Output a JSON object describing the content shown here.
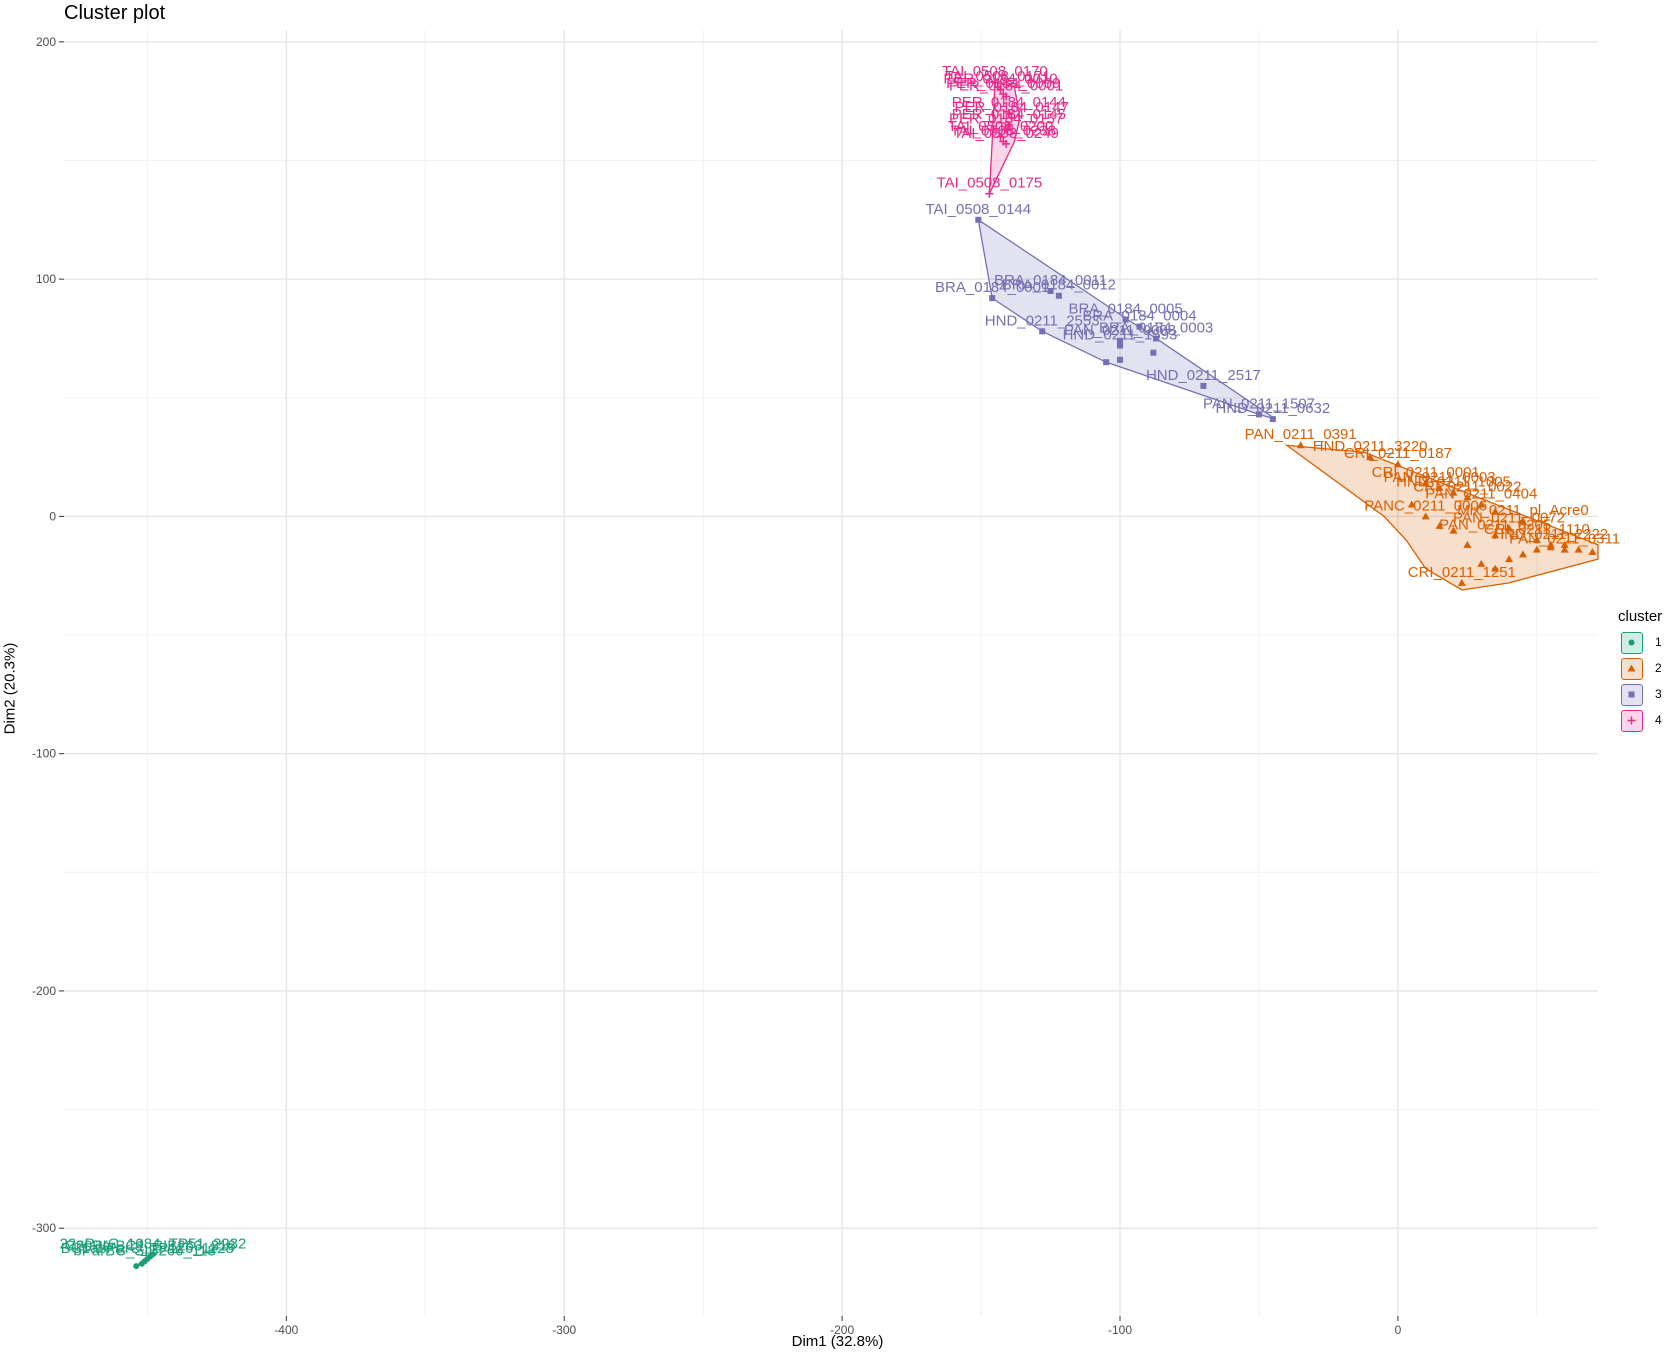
{
  "chart_data": {
    "type": "scatter",
    "title": "Cluster plot",
    "xlabel": "Dim1 (32.8%)",
    "ylabel": "Dim2 (20.3%)",
    "xlim": [
      -480,
      72
    ],
    "ylim": [
      -337,
      205
    ],
    "xticks": [
      -400,
      -300,
      -200,
      -100,
      0
    ],
    "yticks": [
      200,
      100,
      0,
      -100,
      -200,
      -300
    ],
    "grid": true,
    "legend": {
      "title": "cluster",
      "position": "right",
      "entries": [
        "1",
        "2",
        "3",
        "4"
      ]
    },
    "colors": {
      "1": "#1B9E77",
      "2": "#D95F02",
      "3": "#7570B3",
      "4": "#E7298A"
    },
    "series": [
      {
        "cluster": "1",
        "shape": "circle",
        "points": [
          {
            "label": "22aParC_1084_TP51_2232",
            "x": -448,
            "y": -311
          },
          {
            "label": "C20ParBC1_SIB263_316",
            "x": -449,
            "y": -312
          },
          {
            "label": "BC1abParC_TP126_1128",
            "x": -450,
            "y": -313
          },
          {
            "label": "bParBC_SIB266_118",
            "x": -451,
            "y": -314
          },
          {
            "label": "",
            "x": -452,
            "y": -315
          },
          {
            "label": "",
            "x": -454,
            "y": -316
          }
        ],
        "hull": [
          [
            -446,
            -310
          ],
          [
            -454,
            -316
          ],
          [
            -452,
            -314
          ],
          [
            -448,
            -311
          ]
        ]
      },
      {
        "cluster": "2",
        "shape": "triangle",
        "points": [
          {
            "label": "PAN_0211_0391",
            "x": -35,
            "y": 30
          },
          {
            "label": "HND_0211_3220",
            "x": -10,
            "y": 25
          },
          {
            "label": "CRI_0211_0187",
            "x": 0,
            "y": 22
          },
          {
            "label": "CRI_0211_0001",
            "x": 10,
            "y": 14
          },
          {
            "label": "PAN_0211_0003",
            "x": 15,
            "y": 12
          },
          {
            "label": "HND_0211_1005",
            "x": 20,
            "y": 10
          },
          {
            "label": "CRI_0211_0022",
            "x": 25,
            "y": 8
          },
          {
            "label": "PAN_0211_0404",
            "x": 30,
            "y": 5
          },
          {
            "label": "PANC_0211_0006",
            "x": 10,
            "y": 0
          },
          {
            "label": "Mix_0211_pl_Acre0",
            "x": 45,
            "y": -2
          },
          {
            "label": "PAN_0211_0072",
            "x": 40,
            "y": -5
          },
          {
            "label": "PAN_0211_0205",
            "x": 35,
            "y": -8
          },
          {
            "label": "CRI_0211_1110",
            "x": 50,
            "y": -10
          },
          {
            "label": "HND_0211_2222",
            "x": 55,
            "y": -12
          },
          {
            "label": "PAN_0211_0311",
            "x": 60,
            "y": -14
          },
          {
            "label": "CRI_0211_1251",
            "x": 23,
            "y": -28
          },
          {
            "label": "",
            "x": 30,
            "y": -20
          },
          {
            "label": "",
            "x": 35,
            "y": -22
          },
          {
            "label": "",
            "x": 40,
            "y": -18
          },
          {
            "label": "",
            "x": 45,
            "y": -16
          },
          {
            "label": "",
            "x": 50,
            "y": -14
          },
          {
            "label": "",
            "x": 55,
            "y": -13
          },
          {
            "label": "",
            "x": 60,
            "y": -12
          },
          {
            "label": "",
            "x": 65,
            "y": -14
          },
          {
            "label": "",
            "x": 70,
            "y": -15
          },
          {
            "label": "",
            "x": 25,
            "y": -12
          },
          {
            "label": "",
            "x": 20,
            "y": -6
          },
          {
            "label": "",
            "x": 15,
            "y": -4
          },
          {
            "label": "",
            "x": 5,
            "y": 5
          },
          {
            "label": "",
            "x": 35,
            "y": 2
          }
        ],
        "hull": [
          [
            -40,
            30
          ],
          [
            -12,
            27
          ],
          [
            72,
            -12
          ],
          [
            72,
            -18
          ],
          [
            40,
            -28
          ],
          [
            23,
            -31
          ],
          [
            10,
            -22
          ],
          [
            3,
            -10
          ],
          [
            -5,
            0
          ]
        ]
      },
      {
        "cluster": "3",
        "shape": "square",
        "points": [
          {
            "label": "TAI_0508_0144",
            "x": -151,
            "y": 125
          },
          {
            "label": "BRA_0184_0011",
            "x": -125,
            "y": 95
          },
          {
            "label": "BRA_0184_0012",
            "x": -122,
            "y": 93
          },
          {
            "label": "BRA_0184_0001",
            "x": -146,
            "y": 92
          },
          {
            "label": "BRA_0184_0005",
            "x": -98,
            "y": 83
          },
          {
            "label": "BRA_0184_0004",
            "x": -93,
            "y": 80
          },
          {
            "label": "HND_0211_2553",
            "x": -128,
            "y": 78
          },
          {
            "label": "BRA_0184_0003",
            "x": -87,
            "y": 75
          },
          {
            "label": "PAN_0211_0008",
            "x": -100,
            "y": 74
          },
          {
            "label": "HND_0211_1593",
            "x": -100,
            "y": 72
          },
          {
            "label": "",
            "x": -88,
            "y": 69
          },
          {
            "label": "",
            "x": -100,
            "y": 66
          },
          {
            "label": "",
            "x": -105,
            "y": 65
          },
          {
            "label": "HND_0211_2517",
            "x": -70,
            "y": 55
          },
          {
            "label": "PAN_0211_1507",
            "x": -50,
            "y": 43
          },
          {
            "label": "HND_0211_0632",
            "x": -45,
            "y": 41
          }
        ],
        "hull": [
          [
            -151,
            125
          ],
          [
            -87,
            75
          ],
          [
            -44,
            41
          ],
          [
            -50,
            43
          ],
          [
            -105,
            65
          ],
          [
            -128,
            78
          ],
          [
            -146,
            92
          ]
        ]
      },
      {
        "cluster": "4",
        "shape": "cross",
        "points": [
          {
            "label": "TAI_0508_0170",
            "x": -145,
            "y": 183
          },
          {
            "label": "TAI_0508_0171",
            "x": -144,
            "y": 181
          },
          {
            "label": "PER_0184_0010",
            "x": -143,
            "y": 180
          },
          {
            "label": "PER_0184_0009",
            "x": -142,
            "y": 178
          },
          {
            "label": "PER_0184_0001",
            "x": -141,
            "y": 177
          },
          {
            "label": "PER_0184_0144",
            "x": -140,
            "y": 170
          },
          {
            "label": "PER_0184_0147",
            "x": -139,
            "y": 168
          },
          {
            "label": "PER_0184_0145",
            "x": -140,
            "y": 165
          },
          {
            "label": "PER_0184_0157",
            "x": -141,
            "y": 163
          },
          {
            "label": "TAI_0508_0200",
            "x": -143,
            "y": 160
          },
          {
            "label": "TAI_0508_0238",
            "x": -142,
            "y": 158
          },
          {
            "label": "TAI_0508_0249",
            "x": -141,
            "y": 157
          },
          {
            "label": "TAI_0508_0175",
            "x": -147,
            "y": 136
          }
        ],
        "hull": [
          [
            -145,
            183
          ],
          [
            -138,
            181
          ],
          [
            -136,
            168
          ],
          [
            -138,
            158
          ],
          [
            -147,
            136
          ],
          [
            -146,
            158
          ]
        ]
      }
    ]
  }
}
